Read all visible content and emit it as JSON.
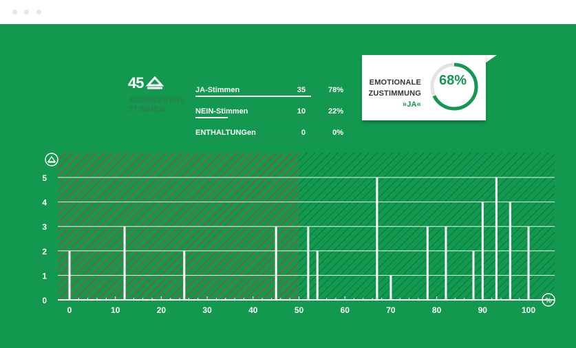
{
  "summary": {
    "total_votes": "45",
    "total_votes_label": "ABGEGEBENE STIMMEN",
    "rows": [
      {
        "label": "JA-Stimmen",
        "count": "35",
        "percent": "78%",
        "fill": 0.78
      },
      {
        "label": "NEIN-Stimmen",
        "count": "10",
        "percent": "22%",
        "fill": 0.22
      },
      {
        "label": "ENTHALTUNGen",
        "count": "0",
        "percent": "0%",
        "fill": 0.0
      }
    ]
  },
  "card": {
    "line1": "EMOTIONALE",
    "line2": "ZUSTIMMUNG",
    "line3": "»JA«",
    "percent_text": "68%",
    "percent_value": 0.68
  },
  "colors": {
    "background": "#12994f",
    "red_hatch": "#c0392b",
    "green_hatch": "#0f7f40",
    "white": "#ffffff"
  },
  "chart_data": {
    "type": "bar",
    "x": [
      0,
      12,
      25,
      45,
      52,
      54,
      67,
      70,
      78,
      82,
      88,
      90,
      93,
      96,
      100
    ],
    "values": [
      2,
      3,
      2,
      3,
      3,
      2,
      5,
      1,
      3,
      3,
      2,
      4,
      5,
      4,
      3
    ],
    "xlim": [
      0,
      100
    ],
    "ylim": [
      0,
      5
    ],
    "xticks": [
      "0",
      "10",
      "20",
      "30",
      "40",
      "50",
      "60",
      "70",
      "80",
      "90",
      "100"
    ],
    "yticks": [
      "0",
      "1",
      "2",
      "3",
      "4",
      "5"
    ],
    "xlabel": "%",
    "ylabel_icon": "vote-icon",
    "zones": [
      {
        "from": 0,
        "to": 50,
        "color": "red-hatch"
      },
      {
        "from": 50,
        "to": 100,
        "color": "green-hatch"
      }
    ],
    "grid": true
  }
}
